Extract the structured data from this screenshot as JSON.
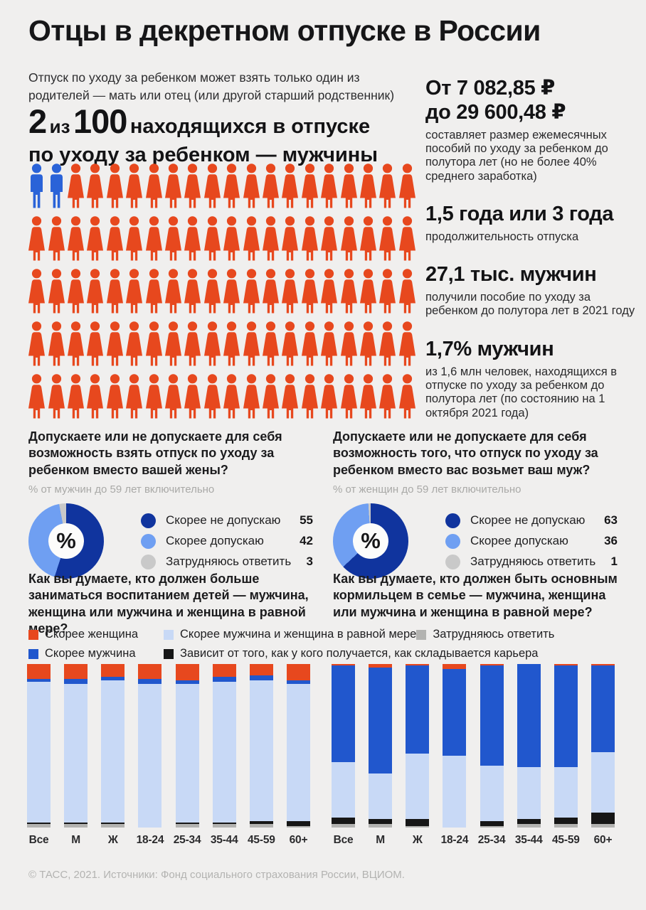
{
  "title": "Отцы в декретном отпуске в России",
  "intro": "Отпуск по уходу за ребенком может взять только один из родителей — мать или отец (или другой старший родственник)",
  "headline": {
    "big1": "2",
    "mid": "из",
    "big2": "100",
    "tail": "находящихся в отпуске",
    "line2": "по уходу за ребенком — мужчины"
  },
  "stats": [
    {
      "value": "От 7 082,85 ₽\nдо 29 600,48 ₽",
      "desc": "составляет размер ежемесячных пособий по уходу за ребенком до полутора лет (но не более 40% среднего заработка)"
    },
    {
      "value": "1,5 года или 3 года",
      "desc": "продолжительность отпуска"
    },
    {
      "value": "27,1 тыс. мужчин",
      "desc": "получили пособие по уходу за ребенком до полутора лет в 2021 году"
    },
    {
      "value": "1,7% мужчин",
      "desc": "из 1,6 млн человек, находящихся в отпуске по уходу за ребенком до полутора лет (по состоянию на 1 октября 2021 года)"
    }
  ],
  "footer": "© ТАСС, 2021. Источники: Фонд социального страхования России, ВЦИОМ.",
  "colors": {
    "background": "#f0efee",
    "text": "#1b1b1d",
    "muted": "#a9a9a7",
    "orange": "#e7481e",
    "man_blue": "#2a63d8",
    "bar_blue": "#2157cd",
    "bar_light_blue": "#c8d9f6",
    "bar_black": "#161616",
    "bar_gray": "#b3b3b1",
    "donut_dark": "#10349e",
    "donut_light": "#6f9ff2",
    "donut_gray": "#c9c9c9"
  },
  "bar_legend": {
    "rows": [
      [
        {
          "label": "Скорее женщина",
          "color": "#e7481e"
        },
        {
          "label": "Скорее мужчина и женщина в равной мере",
          "color": "#c8d9f6"
        },
        {
          "label": "Затрудняюсь ответить",
          "color": "#b3b3b1"
        }
      ],
      [
        {
          "label": "Скорее мужчина",
          "color": "#2157cd"
        },
        {
          "label": "Зависит от того, как у кого получается, как складывается карьера",
          "color": "#161616"
        }
      ]
    ]
  },
  "chart_data": [
    {
      "type": "pictograph",
      "title": "2 из 100 находящихся в отпуске по уходу за ребенком — мужчины",
      "total": 100,
      "men": 2,
      "women": 98,
      "per_row": 20,
      "men_color": "#2a63d8",
      "women_color": "#e7481e"
    },
    {
      "type": "pie",
      "subtype": "donut",
      "title": "Допускаете или не допускаете для себя возможность взять отпуск по уходу за ребенком вместо вашей жены?",
      "subtitle": "% от мужчин до 59 лет включительно",
      "center_label": "%",
      "labels": [
        "Скорее не допускаю",
        "Скорее допускаю",
        "Затрудняюсь ответить"
      ],
      "values": [
        55,
        42,
        3
      ],
      "colors": [
        "#10349e",
        "#6f9ff2",
        "#c9c9c9"
      ],
      "legend_position": "right"
    },
    {
      "type": "pie",
      "subtype": "donut",
      "title": "Допускаете или не допускаете для себя возможность того, что отпуск по уходу за ребенком вместо вас возьмет ваш муж?",
      "subtitle": "% от женщин до 59 лет включительно",
      "center_label": "%",
      "labels": [
        "Скорее не допускаю",
        "Скорее допускаю",
        "Затрудняюсь ответить"
      ],
      "values": [
        63,
        36,
        1
      ],
      "colors": [
        "#10349e",
        "#6f9ff2",
        "#c9c9c9"
      ],
      "legend_position": "right"
    },
    {
      "type": "bar",
      "stacked": true,
      "unit": "%",
      "ylim": [
        0,
        100
      ],
      "grid": false,
      "legend_position": "top",
      "title": "Как вы думаете, кто должен больше заниматься воспитанием детей — мужчина, женщина или мужчина и женщина в равной мере?",
      "categories": [
        "Все",
        "М",
        "Ж",
        "18-24",
        "25-34",
        "35-44",
        "45-59",
        "60+"
      ],
      "series": [
        {
          "name": "Скорее женщина",
          "color": "#e7481e",
          "values": [
            9,
            9,
            8,
            9,
            10,
            8,
            7,
            10
          ]
        },
        {
          "name": "Скорее мужчина",
          "color": "#2157cd",
          "values": [
            2,
            3,
            2,
            3,
            2,
            3,
            3,
            2
          ]
        },
        {
          "name": "Скорее мужчина и женщина в равной мере",
          "color": "#c8d9f6",
          "values": [
            86,
            85,
            87,
            88,
            85,
            86,
            86,
            84
          ]
        },
        {
          "name": "Зависит от того, как у кого получается, как складывается карьера",
          "color": "#161616",
          "values": [
            1,
            1,
            1,
            0,
            1,
            1,
            2,
            3
          ]
        },
        {
          "name": "Затрудняюсь ответить",
          "color": "#b3b3b1",
          "values": [
            2,
            2,
            2,
            0,
            2,
            2,
            2,
            1
          ]
        }
      ]
    },
    {
      "type": "bar",
      "stacked": true,
      "unit": "%",
      "ylim": [
        0,
        100
      ],
      "grid": false,
      "legend_position": "top",
      "title": "Как вы думаете, кто должен быть основным кормильцем в семье — мужчина, женщина или мужчина и женщина в равной мере?",
      "categories": [
        "Все",
        "М",
        "Ж",
        "18-24",
        "25-34",
        "35-44",
        "45-59",
        "60+"
      ],
      "series": [
        {
          "name": "Скорее женщина",
          "color": "#e7481e",
          "values": [
            1,
            2,
            1,
            3,
            1,
            0,
            1,
            1
          ]
        },
        {
          "name": "Скорее мужчина",
          "color": "#2157cd",
          "values": [
            59,
            65,
            54,
            53,
            61,
            63,
            62,
            53
          ]
        },
        {
          "name": "Скорее мужчина и женщина в равной мере",
          "color": "#c8d9f6",
          "values": [
            34,
            28,
            40,
            44,
            34,
            32,
            31,
            37
          ]
        },
        {
          "name": "Зависит от того, как у кого получается, как складывается карьера",
          "color": "#161616",
          "values": [
            4,
            3,
            4,
            0,
            3,
            3,
            4,
            7
          ]
        },
        {
          "name": "Затрудняюсь ответить",
          "color": "#b3b3b1",
          "values": [
            2,
            2,
            1,
            0,
            1,
            2,
            2,
            2
          ]
        }
      ]
    }
  ]
}
